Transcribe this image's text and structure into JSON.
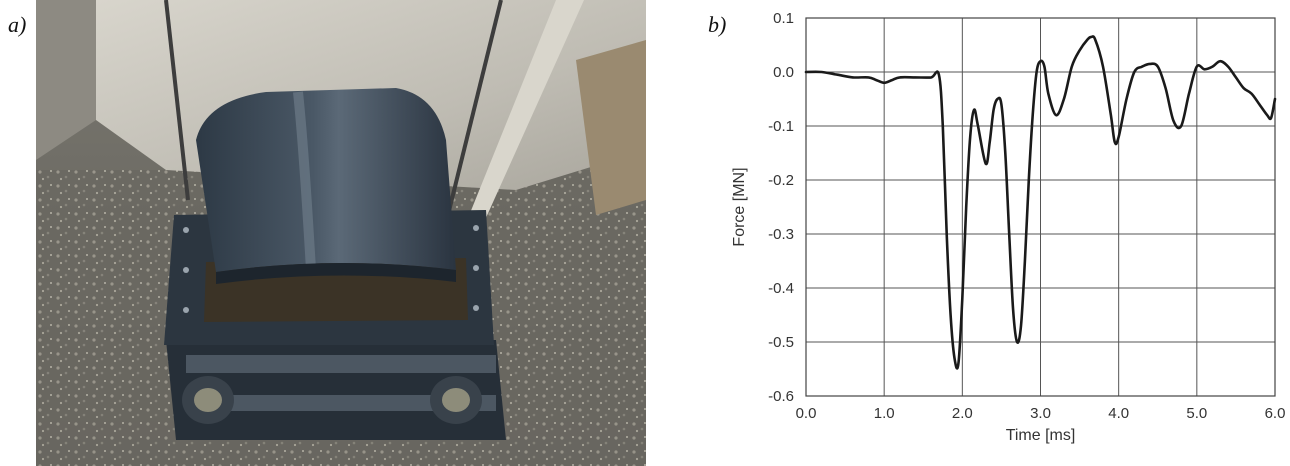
{
  "labels": {
    "a": "a)",
    "b": "b)"
  },
  "photo": {
    "subject": "steel test specimen frame with curved cover plate on gravel ground",
    "colors": {
      "steel": "#3a4856",
      "ground": "#6e6c66",
      "concrete": "#c9c7bf"
    }
  },
  "chart_data": {
    "type": "line",
    "xlabel": "Time [ms]",
    "ylabel": "Force [MN]",
    "xlim": [
      0.0,
      6.0
    ],
    "ylim": [
      -0.6,
      0.1
    ],
    "xticks": [
      "0.0",
      "1.0",
      "2.0",
      "3.0",
      "4.0",
      "5.0",
      "6.0"
    ],
    "yticks": [
      "0.1",
      "0.0",
      "-0.1",
      "-0.2",
      "-0.3",
      "-0.4",
      "-0.5",
      "-0.6"
    ],
    "grid": true,
    "line_color": "#1a1a1a",
    "series": [
      {
        "x": [
          0.0,
          0.2,
          0.4,
          0.6,
          0.8,
          0.9,
          1.0,
          1.1,
          1.2,
          1.4,
          1.6,
          1.7,
          1.75,
          1.8,
          1.85,
          1.9,
          1.95,
          2.0,
          2.05,
          2.1,
          2.15,
          2.2,
          2.3,
          2.35,
          2.4,
          2.45,
          2.5,
          2.55,
          2.6,
          2.65,
          2.7,
          2.75,
          2.8,
          2.85,
          2.9,
          2.95,
          3.0,
          3.05,
          3.1,
          3.2,
          3.3,
          3.4,
          3.5,
          3.6,
          3.65,
          3.7,
          3.8,
          3.9,
          3.95,
          4.0,
          4.1,
          4.2,
          4.3,
          4.4,
          4.5,
          4.6,
          4.7,
          4.8,
          4.9,
          5.0,
          5.1,
          5.2,
          5.3,
          5.4,
          5.5,
          5.6,
          5.7,
          5.8,
          5.9,
          5.95,
          6.0
        ],
        "y": [
          0.0,
          0.0,
          -0.005,
          -0.01,
          -0.01,
          -0.015,
          -0.02,
          -0.015,
          -0.01,
          -0.01,
          -0.01,
          -0.005,
          -0.1,
          -0.3,
          -0.45,
          -0.53,
          -0.54,
          -0.42,
          -0.25,
          -0.12,
          -0.07,
          -0.1,
          -0.17,
          -0.13,
          -0.07,
          -0.05,
          -0.06,
          -0.15,
          -0.3,
          -0.44,
          -0.5,
          -0.47,
          -0.35,
          -0.2,
          -0.08,
          0.0,
          0.02,
          0.01,
          -0.04,
          -0.08,
          -0.05,
          0.01,
          0.04,
          0.06,
          0.065,
          0.06,
          0.01,
          -0.08,
          -0.13,
          -0.12,
          -0.05,
          0.0,
          0.01,
          0.015,
          0.01,
          -0.03,
          -0.09,
          -0.1,
          -0.04,
          0.01,
          0.005,
          0.01,
          0.02,
          0.01,
          -0.01,
          -0.03,
          -0.04,
          -0.06,
          -0.08,
          -0.085,
          -0.05
        ]
      }
    ]
  }
}
